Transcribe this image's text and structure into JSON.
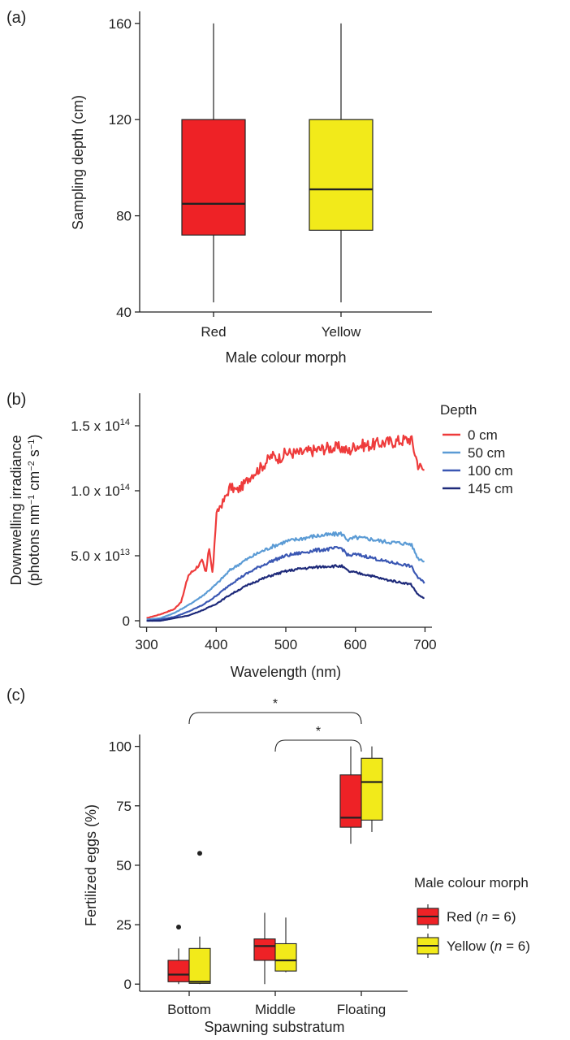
{
  "chart_data": [
    {
      "panel_label": "(a)",
      "type": "boxplot",
      "xlabel": "Male colour morph",
      "ylabel": "Sampling depth (cm)",
      "ylim": [
        40,
        165
      ],
      "yticks": [
        40,
        80,
        120,
        160
      ],
      "categories": [
        "Red",
        "Yellow"
      ],
      "boxes": [
        {
          "category": "Red",
          "min": 44,
          "q1": 72,
          "median": 85,
          "q3": 120,
          "max": 160,
          "color": "#ee2226"
        },
        {
          "category": "Yellow",
          "min": 44,
          "q1": 74,
          "median": 91,
          "q3": 120,
          "max": 160,
          "color": "#f2ea1a"
        }
      ]
    },
    {
      "panel_label": "(b)",
      "type": "line",
      "xlabel": "Wavelength (nm)",
      "ylabel": "Downwelling irradiance",
      "ylabel2": "(photons nm",
      "ylabel2_sup1": "−1",
      "ylabel2_mid": " cm",
      "ylabel2_sup2": "−2",
      "ylabel2_s": " s",
      "ylabel2_sup3": "−1",
      "ylabel2_end": ")",
      "xlim": [
        290,
        710
      ],
      "xticks": [
        300,
        400,
        500,
        600,
        700
      ],
      "ylim": [
        -5000000000000.0,
        175000000000000.0
      ],
      "yticks": [
        {
          "value": 0,
          "label": "0",
          "exp": ""
        },
        {
          "value": 50000000000000.0,
          "label": "5.0 x 10",
          "exp": "13"
        },
        {
          "value": 100000000000000.0,
          "label": "1.0 x 10",
          "exp": "14"
        },
        {
          "value": 150000000000000.0,
          "label": "1.5 x 10",
          "exp": "14"
        }
      ],
      "legend_title": "Depth",
      "legend_position": "top-right",
      "series": [
        {
          "name": "0 cm",
          "color": "#ee3b3b",
          "x": [
            300,
            320,
            340,
            350,
            360,
            370,
            380,
            385,
            390,
            395,
            400,
            405,
            410,
            420,
            430,
            440,
            450,
            460,
            470,
            480,
            490,
            500,
            520,
            540,
            560,
            580,
            590,
            600,
            620,
            640,
            660,
            680,
            690,
            700
          ],
          "y": [
            2000000000000.0,
            5000000000000.0,
            9000000000000.0,
            15000000000000.0,
            35000000000000.0,
            40000000000000.0,
            46000000000000.0,
            36000000000000.0,
            56000000000000.0,
            36000000000000.0,
            80000000000000.0,
            88000000000000.0,
            91000000000000.0,
            103000000000000.0,
            100000000000000.0,
            105000000000000.0,
            112000000000000.0,
            116000000000000.0,
            121000000000000.0,
            127000000000000.0,
            125000000000000.0,
            129000000000000.0,
            129000000000000.0,
            131000000000000.0,
            133000000000000.0,
            133000000000000.0,
            130000000000000.0,
            135000000000000.0,
            135000000000000.0,
            137000000000000.0,
            138000000000000.0,
            140000000000000.0,
            120000000000000.0,
            115000000000000.0
          ]
        },
        {
          "name": "50 cm",
          "color": "#5b9bd5",
          "x": [
            300,
            320,
            340,
            360,
            380,
            400,
            420,
            440,
            460,
            480,
            500,
            520,
            540,
            560,
            580,
            590,
            600,
            620,
            640,
            660,
            680,
            690,
            700
          ],
          "y": [
            1000000000000.0,
            2000000000000.0,
            6000000000000.0,
            12000000000000.0,
            19000000000000.0,
            28000000000000.0,
            39000000000000.0,
            46000000000000.0,
            52000000000000.0,
            57000000000000.0,
            61000000000000.0,
            63000000000000.0,
            65000000000000.0,
            66000000000000.0,
            67000000000000.0,
            62000000000000.0,
            64000000000000.0,
            63000000000000.0,
            61000000000000.0,
            60000000000000.0,
            59000000000000.0,
            48000000000000.0,
            46000000000000.0
          ]
        },
        {
          "name": "100 cm",
          "color": "#3a57b3",
          "x": [
            300,
            320,
            340,
            360,
            380,
            400,
            420,
            440,
            460,
            480,
            500,
            520,
            540,
            560,
            580,
            590,
            600,
            620,
            640,
            660,
            680,
            690,
            700
          ],
          "y": [
            0.0,
            1000000000000.0,
            3000000000000.0,
            7000000000000.0,
            12000000000000.0,
            19000000000000.0,
            28000000000000.0,
            35000000000000.0,
            41000000000000.0,
            46000000000000.0,
            50000000000000.0,
            52000000000000.0,
            54000000000000.0,
            55000000000000.0,
            56000000000000.0,
            50000000000000.0,
            51000000000000.0,
            49000000000000.0,
            46000000000000.0,
            44000000000000.0,
            42000000000000.0,
            33000000000000.0,
            29000000000000.0
          ]
        },
        {
          "name": "145 cm",
          "color": "#1e2a7a",
          "x": [
            300,
            320,
            340,
            360,
            380,
            400,
            420,
            440,
            460,
            480,
            500,
            520,
            540,
            560,
            580,
            590,
            600,
            620,
            640,
            660,
            680,
            690,
            700
          ],
          "y": [
            0.0,
            0.0,
            2000000000000.0,
            4000000000000.0,
            8000000000000.0,
            13000000000000.0,
            20000000000000.0,
            26000000000000.0,
            31000000000000.0,
            35000000000000.0,
            38000000000000.0,
            40000000000000.0,
            41000000000000.0,
            42000000000000.0,
            42000000000000.0,
            38000000000000.0,
            37000000000000.0,
            35000000000000.0,
            32000000000000.0,
            30000000000000.0,
            28000000000000.0,
            20000000000000.0,
            17000000000000.0
          ]
        }
      ]
    },
    {
      "panel_label": "(c)",
      "type": "boxplot",
      "xlabel": "Spawning substratum",
      "ylabel": "Fertilized eggs (%)",
      "ylim": [
        -3,
        105
      ],
      "yticks": [
        0,
        25,
        50,
        75,
        100
      ],
      "categories": [
        "Bottom",
        "Middle",
        "Floating"
      ],
      "legend_title": "Male colour morph",
      "legend_items": [
        {
          "label_pre": "Red (",
          "label_n": "n",
          "label_post": " = 6)",
          "color": "#ee2226"
        },
        {
          "label_pre": "Yellow (",
          "label_n": "n",
          "label_post": " = 6)",
          "color": "#f2ea1a"
        }
      ],
      "boxes": [
        {
          "category": "Bottom",
          "group": "Red",
          "min": 0,
          "q1": 1,
          "median": 4,
          "q3": 10,
          "max": 15,
          "outliers": [
            24
          ],
          "color": "#ee2226"
        },
        {
          "category": "Bottom",
          "group": "Yellow",
          "min": 0,
          "q1": 0.3,
          "median": 1,
          "q3": 15,
          "max": 20,
          "outliers": [
            55
          ],
          "color": "#f2ea1a"
        },
        {
          "category": "Middle",
          "group": "Red",
          "min": 0,
          "q1": 10,
          "median": 16,
          "q3": 19,
          "max": 30,
          "outliers": [],
          "color": "#ee2226"
        },
        {
          "category": "Middle",
          "group": "Yellow",
          "min": 5,
          "q1": 5.5,
          "median": 10,
          "q3": 17,
          "max": 28,
          "outliers": [],
          "color": "#f2ea1a"
        },
        {
          "category": "Floating",
          "group": "Red",
          "min": 59,
          "q1": 66,
          "median": 70,
          "q3": 88,
          "max": 100,
          "outliers": [],
          "color": "#ee2226"
        },
        {
          "category": "Floating",
          "group": "Yellow",
          "min": 64,
          "q1": 69,
          "median": 85,
          "q3": 95,
          "max": 100,
          "outliers": [],
          "color": "#f2ea1a"
        }
      ],
      "significance": [
        {
          "from": "Bottom",
          "to": "Floating",
          "label": "*"
        },
        {
          "from": "Middle",
          "to": "Floating",
          "label": "*"
        }
      ]
    }
  ]
}
